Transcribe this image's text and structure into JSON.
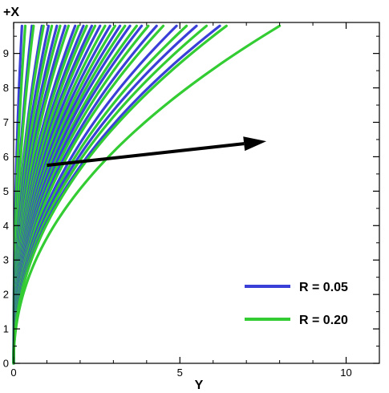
{
  "chart_data": {
    "type": "line",
    "title": "",
    "xlabel": "Y",
    "ylabel": "+X",
    "xlim": [
      0,
      11
    ],
    "ylim": [
      0,
      9.9
    ],
    "x_major_ticks": [
      0,
      5,
      10
    ],
    "x_tick_labels": [
      "0",
      "5",
      "10"
    ],
    "y_major_ticks": [
      0,
      1,
      2,
      3,
      4,
      5,
      6,
      7,
      8,
      9
    ],
    "y_tick_labels": [
      "0",
      "1",
      "2",
      "3",
      "4",
      "5",
      "6",
      "7",
      "8",
      "9"
    ],
    "grid": false,
    "legend_position": "bottom-right",
    "annotation": {
      "type": "arrow",
      "from": [
        1.0,
        5.75
      ],
      "to": [
        7.6,
        6.45
      ]
    },
    "curve_top_y": 9.8,
    "series": [
      {
        "name": "R = 0.05",
        "color": "#3a3fd8",
        "curves_y_at_top": [
          0.25,
          0.55,
          0.85,
          1.05,
          1.3,
          1.55,
          1.85,
          2.1,
          2.35,
          2.6,
          2.9,
          3.2,
          3.5,
          3.85,
          4.3,
          4.9,
          5.5,
          6.2
        ]
      },
      {
        "name": "R = 0.20",
        "color": "#33cc33",
        "curves_y_at_top": [
          0.35,
          0.6,
          0.9,
          1.15,
          1.4,
          1.65,
          1.95,
          2.2,
          2.45,
          2.75,
          3.05,
          3.35,
          3.7,
          4.05,
          4.5,
          5.2,
          5.8,
          6.4,
          8.0
        ]
      }
    ]
  }
}
